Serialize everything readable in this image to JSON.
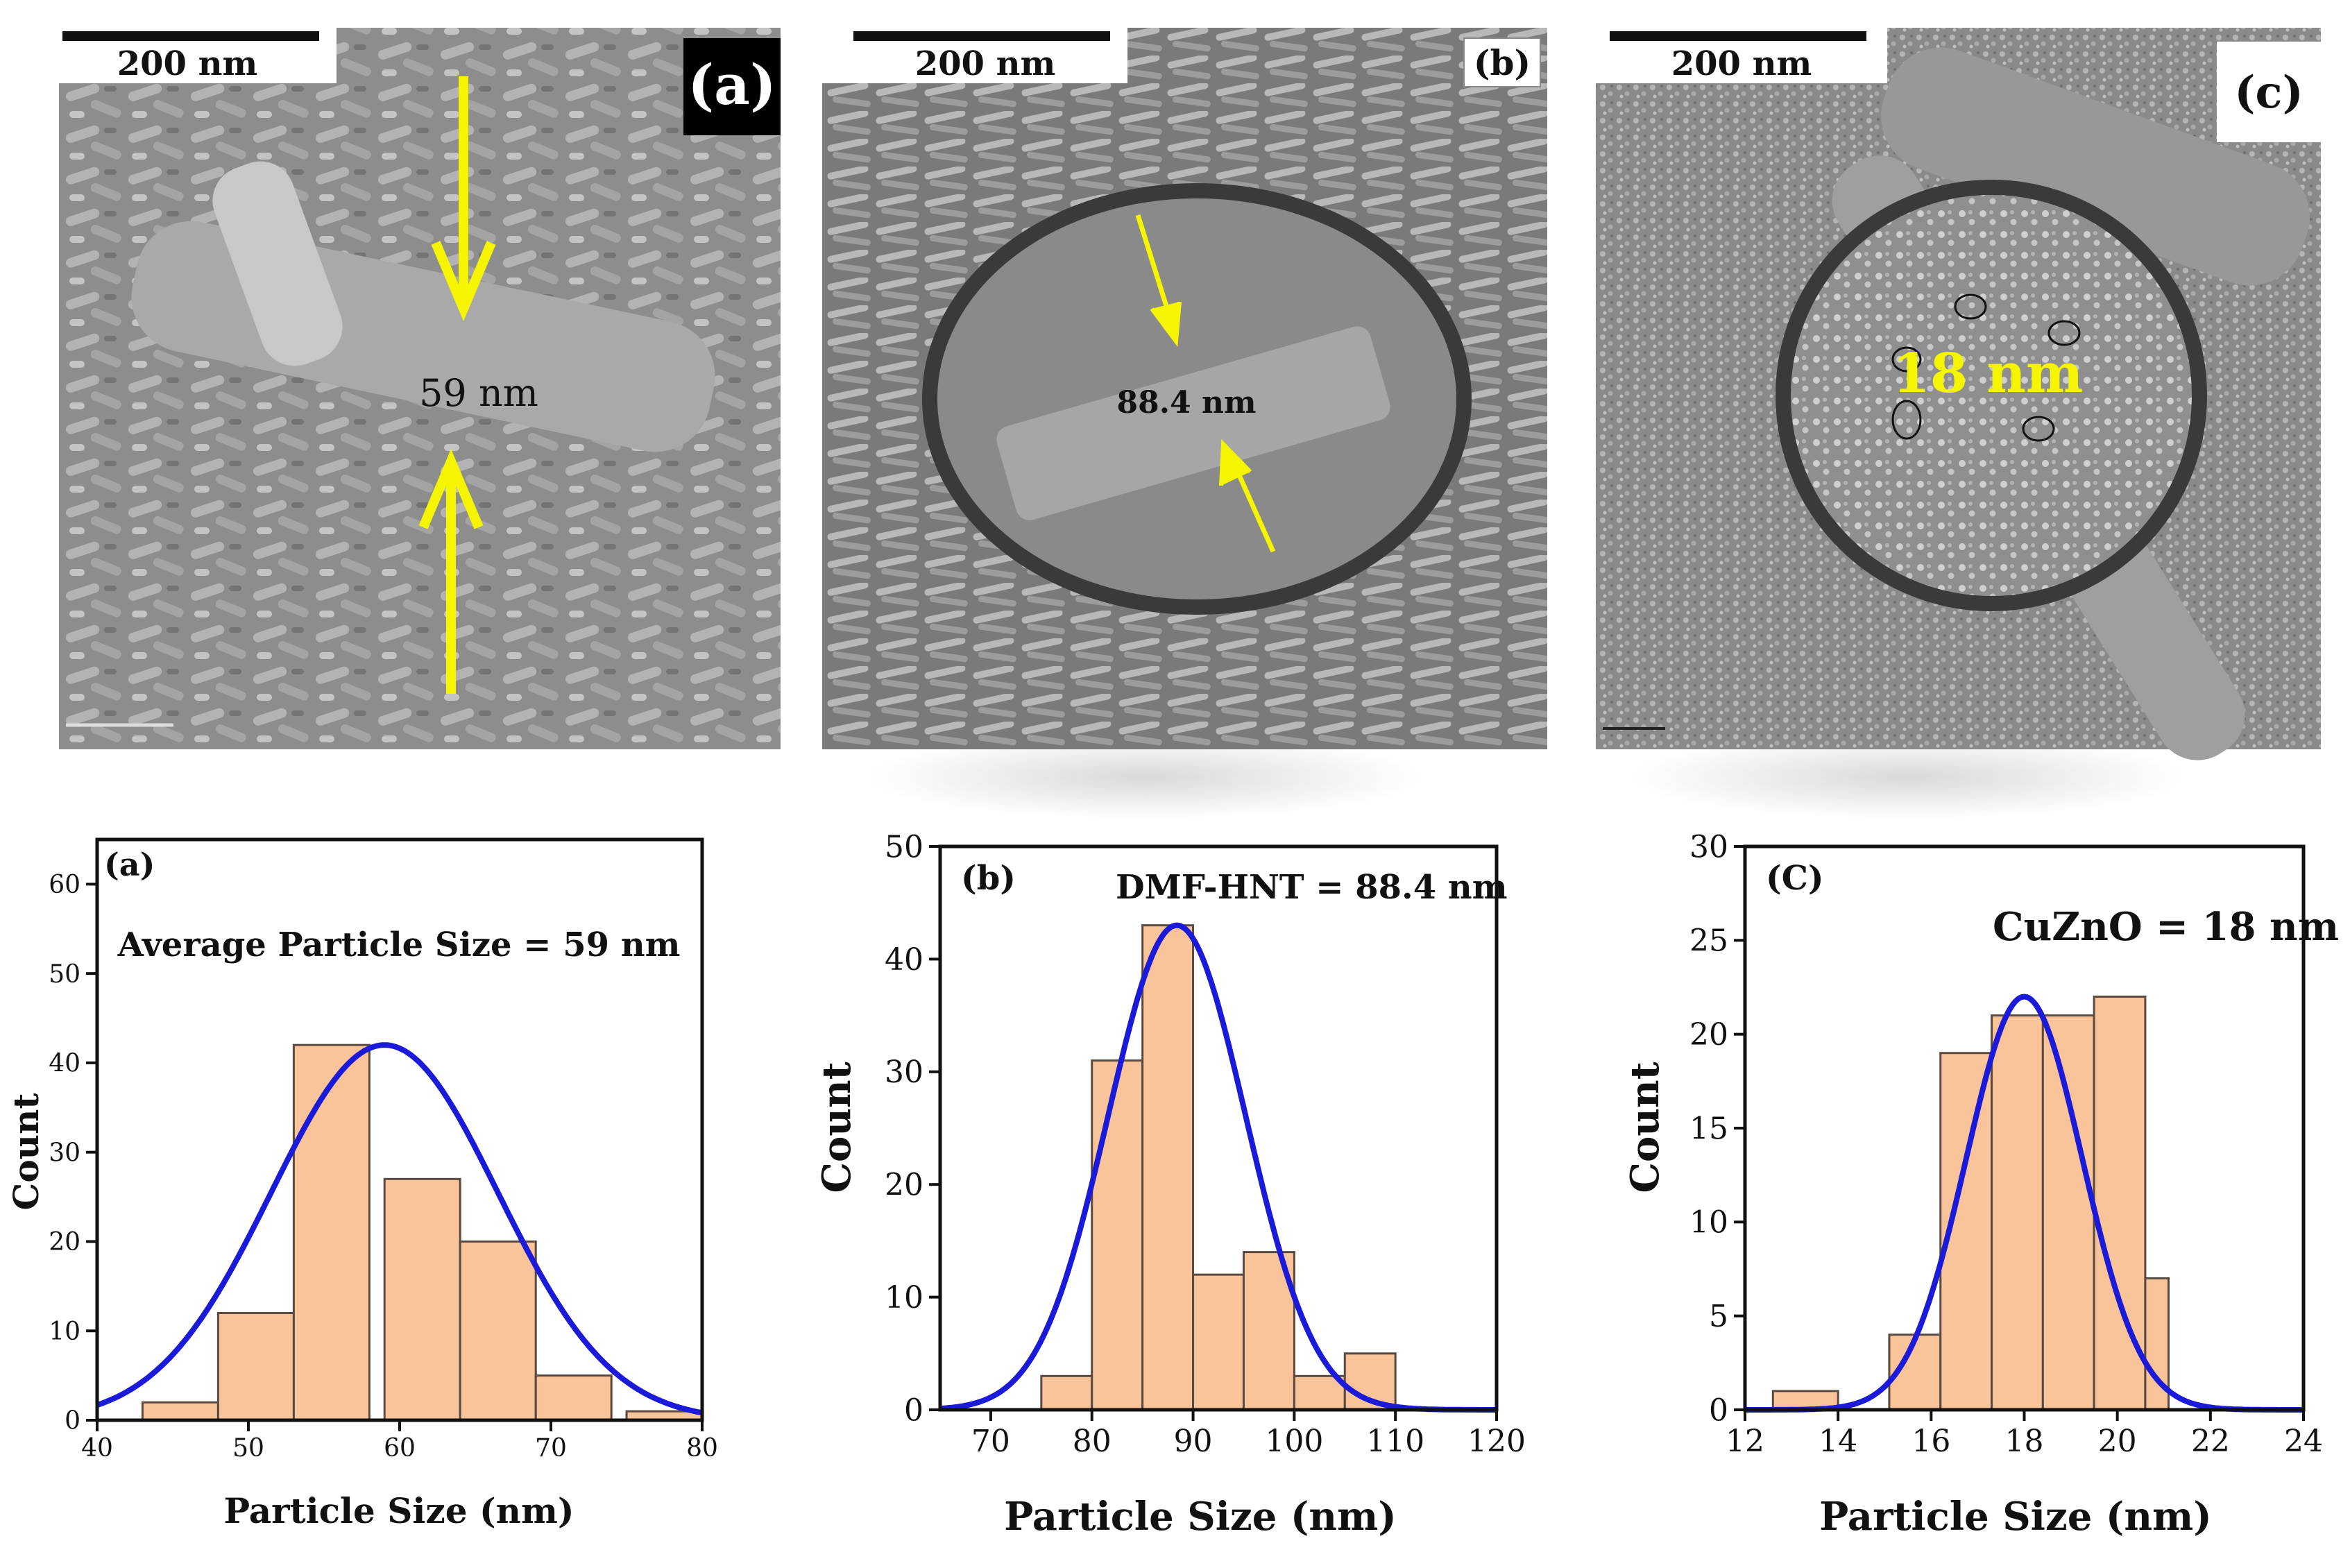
{
  "sem": [
    {
      "label": "(a)",
      "scale_bar": "200 nm",
      "annotation": "59 nm"
    },
    {
      "label": "(b)",
      "scale_bar": "200 nm",
      "annotation": "88.4 nm"
    },
    {
      "label": "(c)",
      "scale_bar": "200 nm",
      "annotation": "18 nm"
    }
  ],
  "colors": {
    "bar_fill": "#f9c49a",
    "bar_edge": "#5a4a40",
    "fit_line": "#1a1ad8",
    "arrow": "#f5f500",
    "sem_dark": "#3a3a3a",
    "annotation_c": "#f5f500"
  },
  "chart_data": [
    {
      "type": "bar",
      "panel_label": "(a)",
      "title": "Average Particle Size = 59 nm",
      "xlabel": "Particle Size (nm)",
      "ylabel": "Count",
      "xlim": [
        40,
        80
      ],
      "ylim": [
        0,
        65
      ],
      "x_ticks": [
        "40",
        "50",
        "60",
        "70",
        "80"
      ],
      "x_tick_values": [
        40,
        50,
        60,
        70,
        80
      ],
      "y_ticks": [
        "0",
        "10",
        "20",
        "30",
        "40",
        "50",
        "60"
      ],
      "y_tick_values": [
        0,
        10,
        20,
        30,
        40,
        50,
        60
      ],
      "bins": [
        {
          "from": 43,
          "to": 48,
          "count": 2
        },
        {
          "from": 48,
          "to": 53,
          "count": 12
        },
        {
          "from": 53,
          "to": 58,
          "count": 42
        },
        {
          "from": 59,
          "to": 64,
          "count": 27
        },
        {
          "from": 64,
          "to": 69,
          "count": 20
        },
        {
          "from": 69,
          "to": 74,
          "count": 5
        },
        {
          "from": 75,
          "to": 80,
          "count": 1
        }
      ],
      "fit": {
        "mean": 59,
        "peak": 42,
        "sigma": 7.5
      }
    },
    {
      "type": "bar",
      "panel_label": "(b)",
      "title": "DMF-HNT  = 88.4 nm",
      "xlabel": "Particle Size (nm)",
      "ylabel": "Count",
      "xlim": [
        65,
        120
      ],
      "ylim": [
        0,
        50
      ],
      "x_ticks": [
        "70",
        "80",
        "90",
        "100",
        "110",
        "120"
      ],
      "x_tick_values": [
        70,
        80,
        90,
        100,
        110,
        120
      ],
      "y_ticks": [
        "0",
        "10",
        "20",
        "30",
        "40",
        "50"
      ],
      "y_tick_values": [
        0,
        10,
        20,
        30,
        40,
        50
      ],
      "bins": [
        {
          "from": 75,
          "to": 80,
          "count": 3
        },
        {
          "from": 80,
          "to": 85,
          "count": 31
        },
        {
          "from": 85,
          "to": 90,
          "count": 43
        },
        {
          "from": 90,
          "to": 95,
          "count": 12
        },
        {
          "from": 95,
          "to": 100,
          "count": 14
        },
        {
          "from": 100,
          "to": 105,
          "count": 3
        },
        {
          "from": 105,
          "to": 110,
          "count": 5
        }
      ],
      "fit": {
        "mean": 88.4,
        "peak": 43,
        "sigma": 6.8
      }
    },
    {
      "type": "bar",
      "panel_label": "(C)",
      "title": "CuZnO = 18 nm",
      "xlabel": "Particle Size (nm)",
      "ylabel": "Count",
      "xlim": [
        12,
        24
      ],
      "ylim": [
        0,
        30
      ],
      "x_ticks": [
        "12",
        "14",
        "16",
        "18",
        "20",
        "22",
        "24"
      ],
      "x_tick_values": [
        12,
        14,
        16,
        18,
        20,
        22,
        24
      ],
      "y_ticks": [
        "0",
        "5",
        "10",
        "15",
        "20",
        "25",
        "30"
      ],
      "y_tick_values": [
        0,
        5,
        10,
        15,
        20,
        25,
        30
      ],
      "bins": [
        {
          "from": 12.6,
          "to": 14.0,
          "count": 1
        },
        {
          "from": 15.1,
          "to": 16.2,
          "count": 4
        },
        {
          "from": 16.2,
          "to": 17.3,
          "count": 19
        },
        {
          "from": 17.3,
          "to": 18.4,
          "count": 21
        },
        {
          "from": 18.4,
          "to": 19.5,
          "count": 21
        },
        {
          "from": 19.5,
          "to": 20.6,
          "count": 22
        },
        {
          "from": 20.6,
          "to": 21.1,
          "count": 7
        }
      ],
      "fit": {
        "mean": 18,
        "peak": 22,
        "sigma": 1.25
      }
    }
  ]
}
